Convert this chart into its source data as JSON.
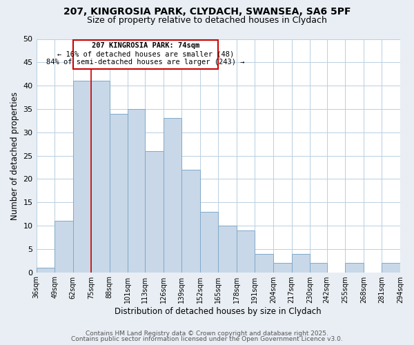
{
  "title1": "207, KINGROSIA PARK, CLYDACH, SWANSEA, SA6 5PF",
  "title2": "Size of property relative to detached houses in Clydach",
  "xlabel": "Distribution of detached houses by size in Clydach",
  "ylabel": "Number of detached properties",
  "bin_edges": [
    36,
    49,
    62,
    75,
    88,
    101,
    113,
    126,
    139,
    152,
    165,
    178,
    191,
    204,
    217,
    230,
    242,
    255,
    268,
    281,
    294
  ],
  "bar_heights": [
    1,
    11,
    41,
    41,
    34,
    35,
    26,
    33,
    22,
    13,
    10,
    9,
    4,
    2,
    4,
    2,
    0,
    2,
    0,
    2
  ],
  "bar_color": "#c8d8e8",
  "bar_edgecolor": "#7fa8c8",
  "reference_line_x": 75,
  "ylim": [
    0,
    50
  ],
  "yticks": [
    0,
    5,
    10,
    15,
    20,
    25,
    30,
    35,
    40,
    45,
    50
  ],
  "annotation_title": "207 KINGROSIA PARK: 74sqm",
  "annotation_line1": "← 16% of detached houses are smaller (48)",
  "annotation_line2": "84% of semi-detached houses are larger (243) →",
  "footer1": "Contains HM Land Registry data © Crown copyright and database right 2025.",
  "footer2": "Contains public sector information licensed under the Open Government Licence v3.0.",
  "bg_color": "#e8eef4",
  "plot_bg_color": "#ffffff",
  "grid_color": "#b8cfe0",
  "title_color": "#000000",
  "footer_color": "#555555"
}
